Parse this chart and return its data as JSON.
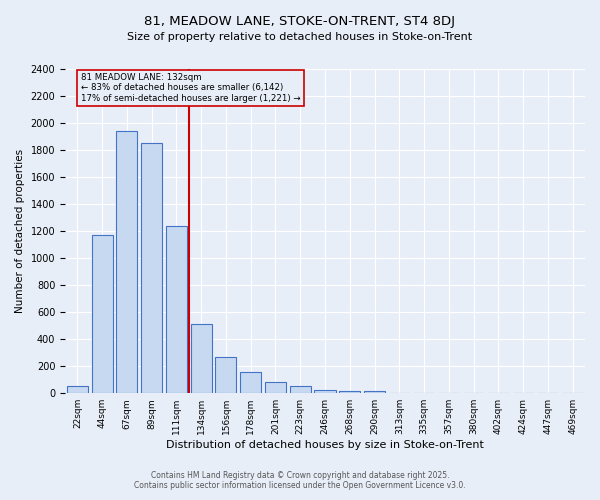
{
  "title_line1": "81, MEADOW LANE, STOKE-ON-TRENT, ST4 8DJ",
  "title_line2": "Size of property relative to detached houses in Stoke-on-Trent",
  "xlabel": "Distribution of detached houses by size in Stoke-on-Trent",
  "ylabel": "Number of detached properties",
  "annotation_line1": "81 MEADOW LANE: 132sqm",
  "annotation_line2": "← 83% of detached houses are smaller (6,142)",
  "annotation_line3": "17% of semi-detached houses are larger (1,221) →",
  "footer_line1": "Contains HM Land Registry data © Crown copyright and database right 2025.",
  "footer_line2": "Contains public sector information licensed under the Open Government Licence v3.0.",
  "bar_color": "#c6d9f0",
  "bar_edge_color": "#4472c4",
  "bg_color": "#e8eef8",
  "grid_color": "#ffffff",
  "vline_color": "#cc0000",
  "annotation_box_edgecolor": "#cc0000",
  "categories": [
    "22sqm",
    "44sqm",
    "67sqm",
    "89sqm",
    "111sqm",
    "134sqm",
    "156sqm",
    "178sqm",
    "201sqm",
    "223sqm",
    "246sqm",
    "268sqm",
    "290sqm",
    "313sqm",
    "335sqm",
    "357sqm",
    "380sqm",
    "402sqm",
    "424sqm",
    "447sqm",
    "469sqm"
  ],
  "values": [
    50,
    1170,
    1940,
    1850,
    1240,
    510,
    270,
    160,
    80,
    50,
    25,
    20,
    20,
    5,
    5,
    2,
    2,
    2,
    1,
    1,
    1
  ],
  "vline_position": 4.5,
  "ylim": [
    0,
    2400
  ],
  "yticks": [
    0,
    200,
    400,
    600,
    800,
    1000,
    1200,
    1400,
    1600,
    1800,
    2000,
    2200,
    2400
  ]
}
